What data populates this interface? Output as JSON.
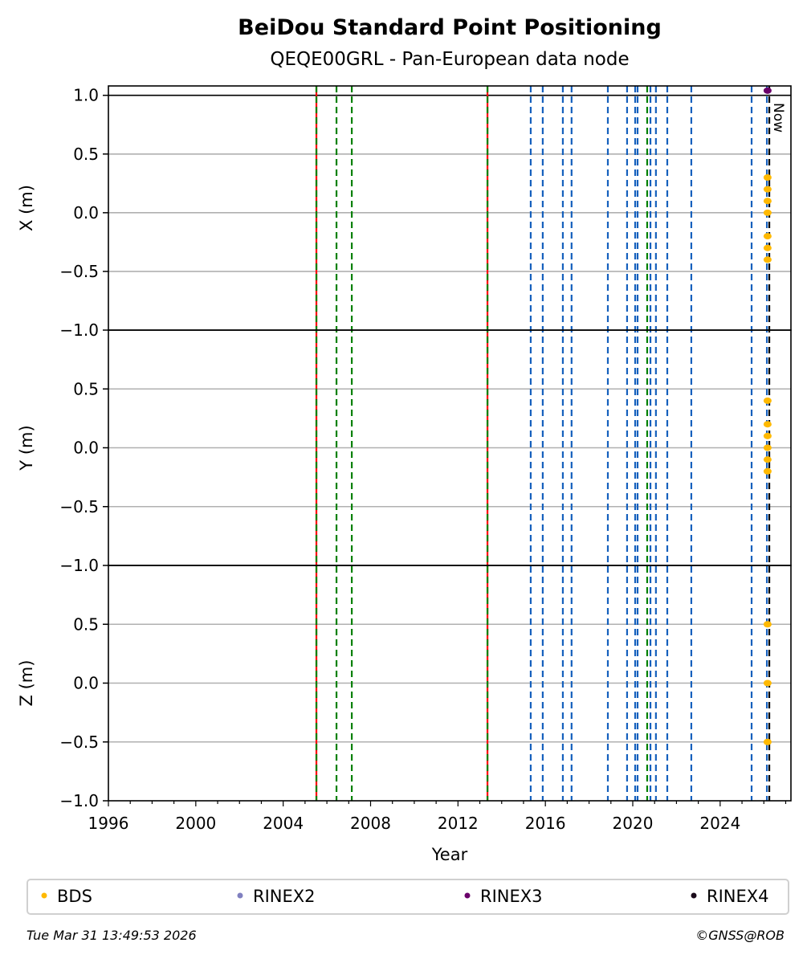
{
  "chart_data": {
    "type": "scatter",
    "title": "BeiDou Standard Point Positioning",
    "subtitle": "QEQE00GRL - Pan-European data node",
    "xlabel": "Year",
    "xlim": [
      1996,
      2027.24
    ],
    "xticks": [
      1996,
      2000,
      2004,
      2008,
      2012,
      2016,
      2020,
      2024
    ],
    "panels": [
      {
        "ylabel": "X (m)",
        "ylim": [
          -1.0,
          1.08
        ],
        "yticks": [
          "1.0",
          "0.5",
          "0.0",
          "−0.5",
          "−1.0"
        ],
        "ytick_values": [
          1.0,
          0.5,
          0.0,
          -0.5,
          -1.0
        ],
        "bds": [
          0.3,
          0.2,
          0.1,
          0.0,
          -0.2,
          -0.3,
          -0.4
        ],
        "rinex3": [
          1.04
        ]
      },
      {
        "ylabel": "Y (m)",
        "ylim": [
          -1.0,
          1.0
        ],
        "yticks": [
          "0.5",
          "0.0",
          "−0.5",
          "−1.0"
        ],
        "ytick_values": [
          0.5,
          0.0,
          -0.5,
          -1.0
        ],
        "bds": [
          0.4,
          0.2,
          0.1,
          0.0,
          -0.1,
          -0.2
        ],
        "rinex3": []
      },
      {
        "ylabel": "Z (m)",
        "ylim": [
          -1.0,
          1.0
        ],
        "yticks": [
          "0.5",
          "0.0",
          "−0.5",
          "−1.0"
        ],
        "ytick_values": [
          0.5,
          0.0,
          -0.5,
          -1.0
        ],
        "bds": [
          0.5,
          0.0,
          -0.5
        ],
        "rinex3": []
      }
    ],
    "data_x": 2026.17,
    "events": [
      {
        "x": 2005.52,
        "color": "#ff0000",
        "style": "solid"
      },
      {
        "x": 2005.52,
        "color": "#008000",
        "style": "dashed"
      },
      {
        "x": 2006.44,
        "color": "#008000",
        "style": "dashed"
      },
      {
        "x": 2007.14,
        "color": "#008000",
        "style": "dashed"
      },
      {
        "x": 2013.35,
        "color": "#ff0000",
        "style": "solid"
      },
      {
        "x": 2013.35,
        "color": "#008000",
        "style": "dashed"
      },
      {
        "x": 2015.33,
        "color": "#1560bd",
        "style": "dashed"
      },
      {
        "x": 2015.88,
        "color": "#1560bd",
        "style": "dashed"
      },
      {
        "x": 2016.8,
        "color": "#1560bd",
        "style": "dashed"
      },
      {
        "x": 2017.2,
        "color": "#1560bd",
        "style": "dashed"
      },
      {
        "x": 2018.86,
        "color": "#1560bd",
        "style": "dashed"
      },
      {
        "x": 2019.74,
        "color": "#1560bd",
        "style": "dashed"
      },
      {
        "x": 2020.11,
        "color": "#1560bd",
        "style": "dashed"
      },
      {
        "x": 2020.22,
        "color": "#1560bd",
        "style": "dashed"
      },
      {
        "x": 2020.66,
        "color": "#008000",
        "style": "dashed"
      },
      {
        "x": 2020.81,
        "color": "#1560bd",
        "style": "dashed"
      },
      {
        "x": 2021.06,
        "color": "#1560bd",
        "style": "dashed"
      },
      {
        "x": 2021.58,
        "color": "#1560bd",
        "style": "dashed"
      },
      {
        "x": 2022.68,
        "color": "#1560bd",
        "style": "dashed"
      },
      {
        "x": 2025.44,
        "color": "#1560bd",
        "style": "dashed"
      },
      {
        "x": 2026.14,
        "color": "#1560bd",
        "style": "dashed"
      },
      {
        "x": 2026.25,
        "color": "#000000",
        "style": "dashed"
      }
    ],
    "now_label": "Now",
    "now_x": 2026.25,
    "legend": [
      {
        "label": "BDS",
        "color": "#ffb900"
      },
      {
        "label": "RINEX2",
        "color": "#8080c0"
      },
      {
        "label": "RINEX3",
        "color": "#6a006a"
      },
      {
        "label": "RINEX4",
        "color": "#1a0a1a"
      }
    ],
    "legend_placement": "bottom",
    "grid": true
  },
  "footer": {
    "timestamp": "Tue Mar 31 13:49:53 2026",
    "credit": "©GNSS@ROB"
  }
}
